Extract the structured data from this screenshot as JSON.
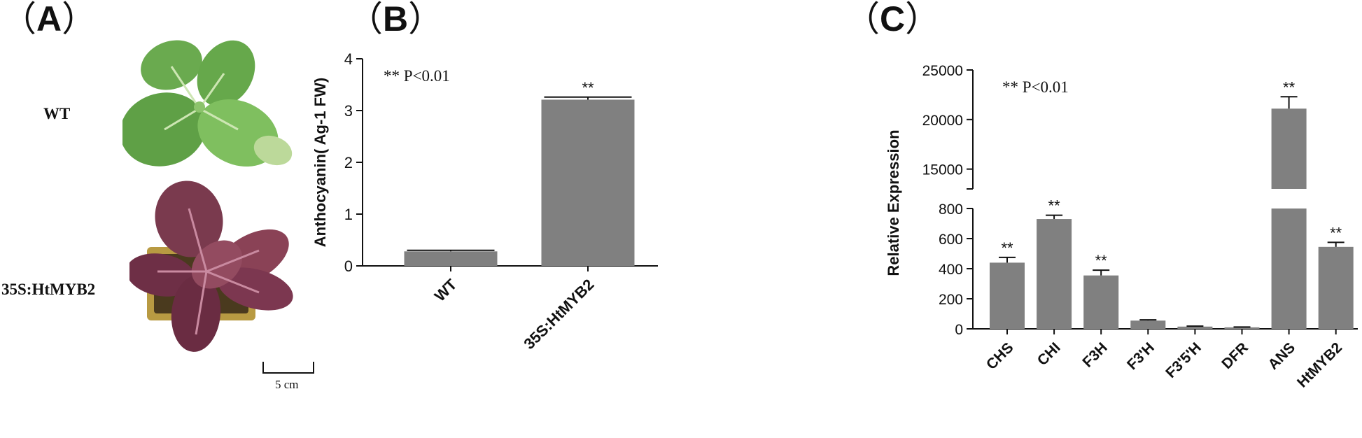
{
  "panels": {
    "a": "A",
    "b": "B",
    "c": "C",
    "open_paren": "（",
    "close_paren": "）"
  },
  "plants": {
    "wt_label": "WT",
    "transgenic_label": "35S:HtMYB2",
    "scale_bar_label": "5 cm"
  },
  "colors": {
    "bar": "#808080",
    "leaf_green": "#5fa046",
    "leaf_purple": "#7a3a4e"
  },
  "chart_data": [
    {
      "type": "bar",
      "categories": [
        "WT",
        "35S:HtMYB2"
      ],
      "values": [
        0.28,
        3.21
      ],
      "errors": [
        0.02,
        0.05
      ],
      "significance": [
        "",
        "**"
      ],
      "annotation": "** P<0.01",
      "xlabel": "",
      "ylabel": "Anthocyanin( Ag-1 FW)",
      "ylim": [
        0,
        4
      ],
      "yticks": [
        0,
        1,
        2,
        3,
        4
      ]
    },
    {
      "type": "bar",
      "categories": [
        "CHS",
        "CHI",
        "F3H",
        "F3'H",
        "F3'5'H",
        "DFR",
        "ANS",
        "HtMYB2"
      ],
      "values": [
        440,
        730,
        355,
        55,
        15,
        10,
        21100,
        545
      ],
      "errors": [
        35,
        25,
        35,
        5,
        3,
        2,
        1200,
        30
      ],
      "significance": [
        "**",
        "**",
        "**",
        "",
        "",
        "",
        "**",
        "**"
      ],
      "annotation": "** P<0.01",
      "xlabel": "",
      "ylabel": "Relative Expression",
      "axis_break": true,
      "lower_ylim": [
        0,
        800
      ],
      "lower_yticks": [
        0,
        200,
        400,
        600,
        800
      ],
      "upper_ylim": [
        13000,
        25000
      ],
      "upper_yticks": [
        15000,
        20000,
        25000
      ]
    }
  ]
}
